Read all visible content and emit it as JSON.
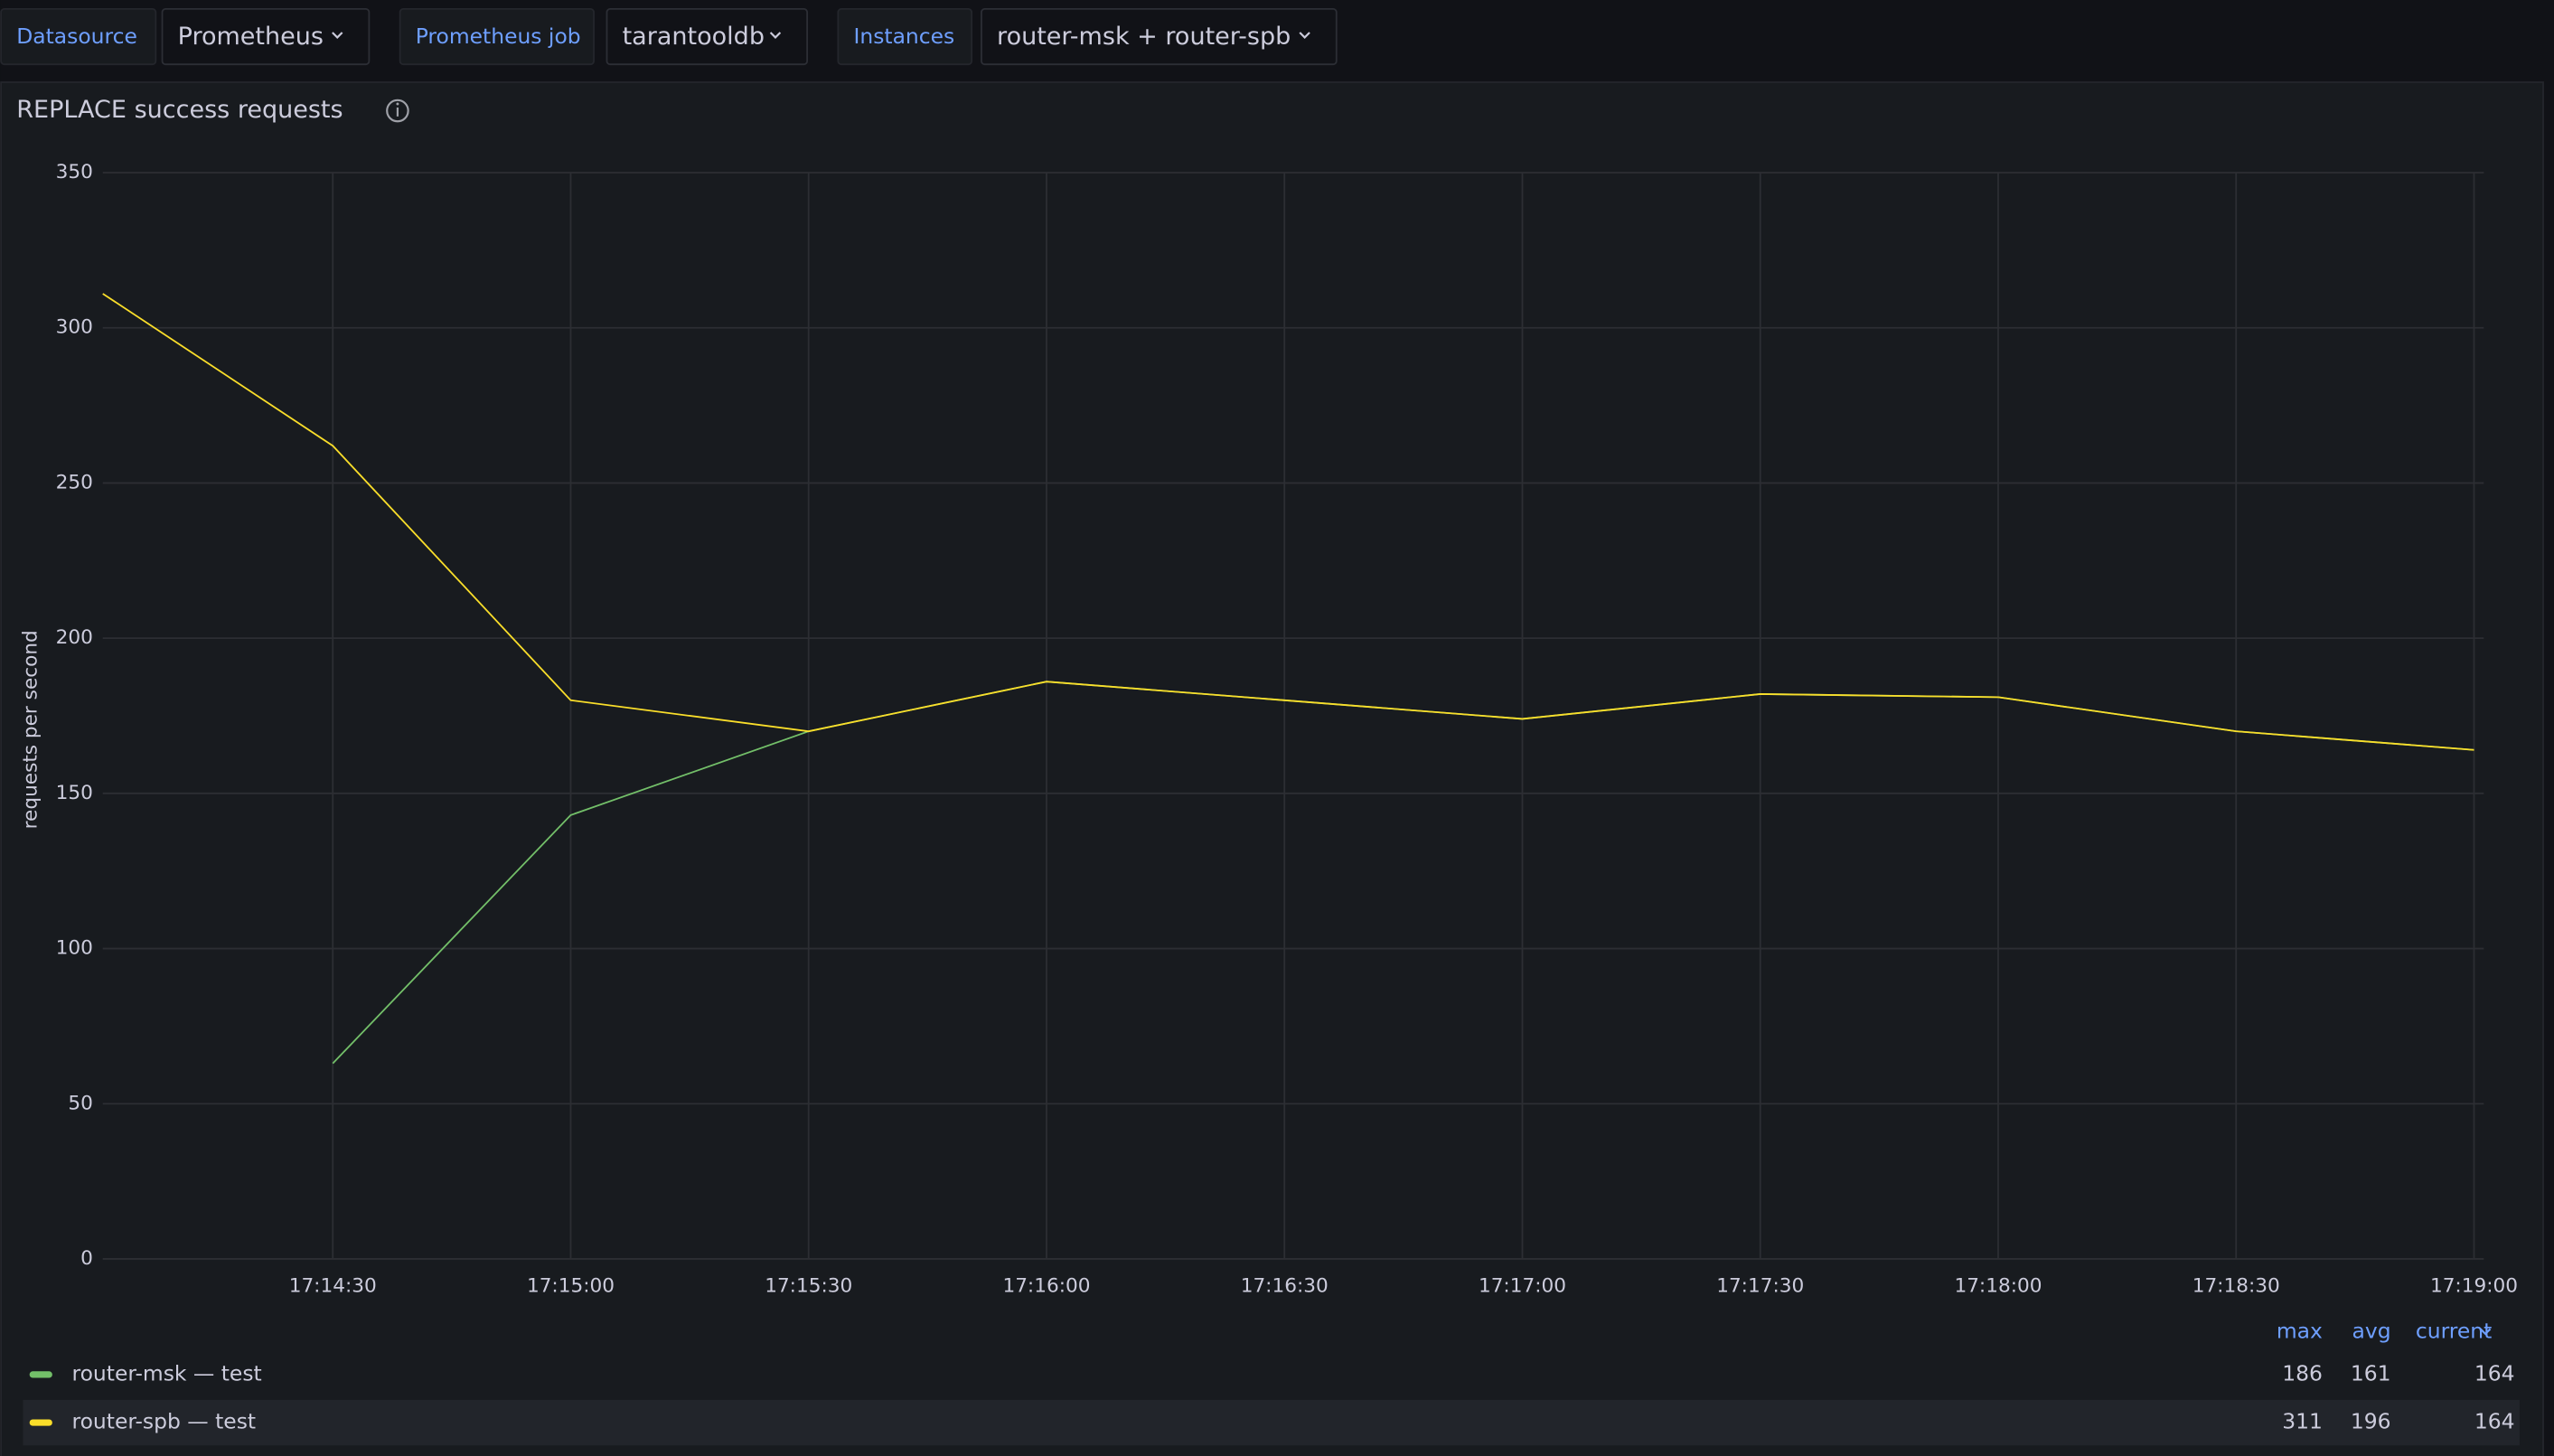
{
  "toolbar": {
    "variables": [
      {
        "label": "Datasource",
        "value": "Prometheus"
      },
      {
        "label": "Prometheus job",
        "value": "tarantooldb"
      },
      {
        "label": "Instances",
        "value": "router-msk + router-spb"
      }
    ]
  },
  "chart_data": {
    "type": "line",
    "title": "REPLACE success requests",
    "y_label": "requests per second",
    "x": [
      "17:14:01",
      "17:14:30",
      "17:15:00",
      "17:15:30",
      "17:16:00",
      "17:16:30",
      "17:17:00",
      "17:17:30",
      "17:18:00",
      "17:18:30",
      "17:19:00"
    ],
    "series": [
      {
        "name": "router-msk — test",
        "color": "#73bf69",
        "values": [
          null,
          63,
          143,
          170,
          186,
          180,
          174,
          182,
          181,
          170,
          164
        ],
        "stats": [
          186,
          161,
          164
        ]
      },
      {
        "name": "router-spb — test",
        "color": "#fade2a",
        "values": [
          311,
          262,
          180,
          170,
          186,
          180,
          174,
          182,
          181,
          170,
          164
        ],
        "stats": [
          311,
          196,
          164
        ]
      }
    ],
    "xlim": [
      "17:14:01",
      "17:19:00"
    ],
    "xticks": [
      "17:14:30",
      "17:15:00",
      "17:15:30",
      "17:16:00",
      "17:16:30",
      "17:17:00",
      "17:17:30",
      "17:18:00",
      "17:18:30",
      "17:19:00"
    ],
    "ylim": [
      0,
      350
    ],
    "yticks": [
      0,
      50,
      100,
      150,
      200,
      250,
      300,
      350
    ],
    "grid": true,
    "legend_columns": [
      "max",
      "avg",
      "current"
    ]
  }
}
